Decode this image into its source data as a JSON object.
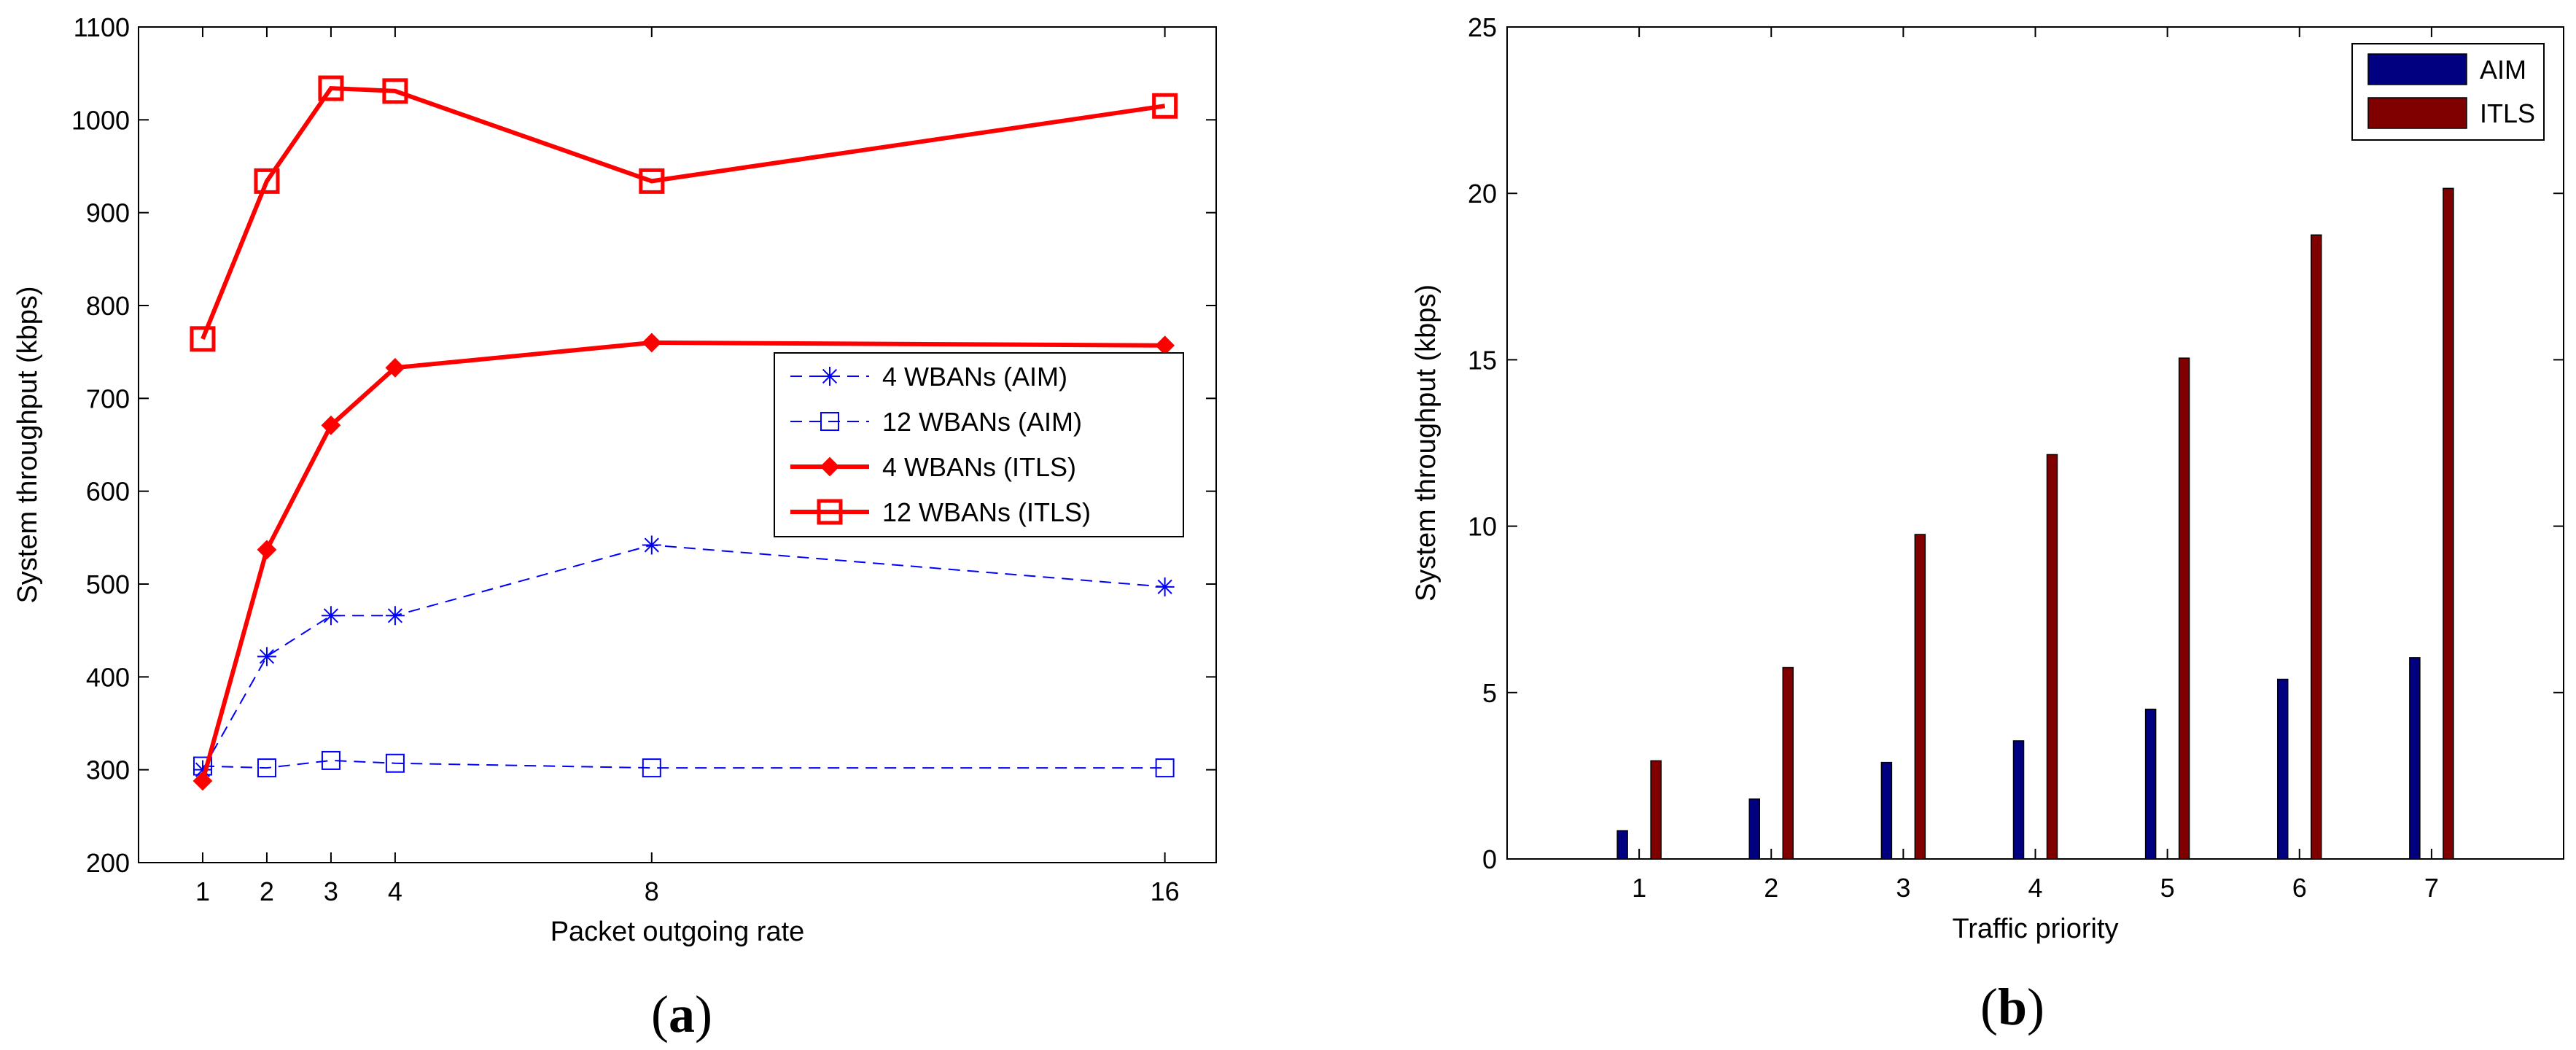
{
  "chart_data": [
    {
      "id": "a",
      "type": "line",
      "caption": {
        "open": "(",
        "letter": "a",
        "close": ")"
      },
      "xlabel": "Packet outgoing rate",
      "ylabel": "System throughput (kbps)",
      "xlim": [
        0,
        16.8
      ],
      "ylim": [
        200,
        1100
      ],
      "xticks": [
        1,
        2,
        3,
        4,
        8,
        16
      ],
      "yticks": [
        200,
        300,
        400,
        500,
        600,
        700,
        800,
        900,
        1000,
        1100
      ],
      "x": [
        1,
        2,
        3,
        4,
        8,
        16
      ],
      "legend_position": "center-right",
      "series": [
        {
          "name": "4 WBANs (AIM)",
          "color": "#0000ff",
          "style": "dashed",
          "marker": "star",
          "values": [
            300,
            422,
            466,
            466,
            542,
            497
          ]
        },
        {
          "name": "12 WBANs (AIM)",
          "color": "#0000ff",
          "style": "dashed",
          "marker": "square",
          "values": [
            304,
            302,
            310,
            307,
            302,
            302
          ]
        },
        {
          "name": "4 WBANs (ITLS)",
          "color": "#ff0000",
          "style": "solid",
          "marker": "diamond",
          "values": [
            288,
            537,
            671,
            733,
            760,
            757
          ]
        },
        {
          "name": "12 WBANs (ITLS)",
          "color": "#ff0000",
          "style": "solid",
          "marker": "square",
          "values": [
            764,
            934,
            1034,
            1031,
            934,
            1015
          ]
        }
      ]
    },
    {
      "id": "b",
      "type": "bar",
      "caption": {
        "open": "(",
        "letter": "b",
        "close": ")"
      },
      "xlabel": "Traffic priority",
      "ylabel": "System throughput (kbps)",
      "xlim": [
        0,
        8
      ],
      "ylim": [
        0,
        25
      ],
      "categories": [
        "1",
        "2",
        "3",
        "4",
        "5",
        "6",
        "7"
      ],
      "yticks": [
        0,
        5,
        10,
        15,
        20,
        25
      ],
      "legend_position": "top-right",
      "series": [
        {
          "name": "AIM",
          "color": "#000080",
          "values": [
            0.85,
            1.8,
            2.9,
            3.55,
            4.5,
            5.4,
            6.05
          ]
        },
        {
          "name": "ITLS",
          "color": "#800000",
          "values": [
            2.95,
            5.75,
            9.75,
            12.15,
            15.05,
            18.75,
            20.15
          ]
        }
      ]
    }
  ]
}
